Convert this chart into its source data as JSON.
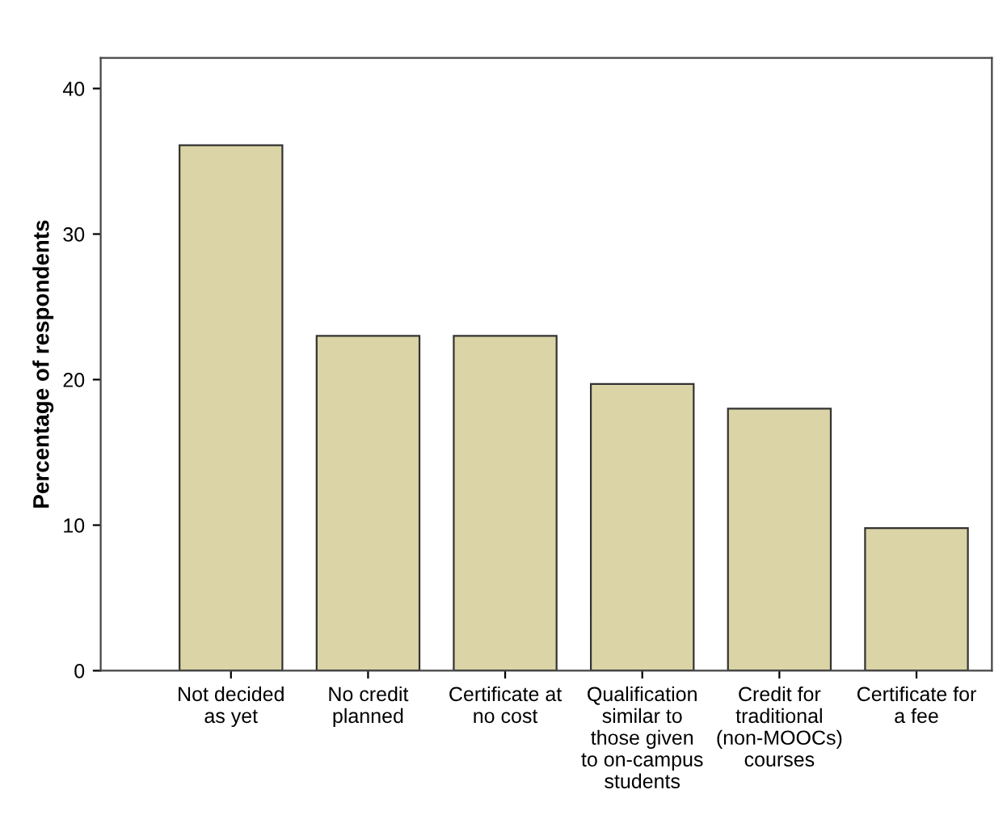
{
  "chart_data": {
    "type": "bar",
    "ylabel": "Percentage of respondents",
    "categories": [
      "Not decided\nas yet",
      "No credit\nplanned",
      "Certificate at\nno cost",
      "Qualification\nsimilar to\nthose given\nto on-campus\nstudents",
      "Credit for\ntraditional\n(non-MOOCs)\ncourses",
      "Certificate for\na fee"
    ],
    "values": [
      36.1,
      23.0,
      23.0,
      19.7,
      18.0,
      9.8
    ],
    "color": "#dbd4a6",
    "ylim": [
      0,
      42.1
    ],
    "yticks": [
      0,
      10,
      20,
      30,
      40
    ],
    "grid": false
  }
}
